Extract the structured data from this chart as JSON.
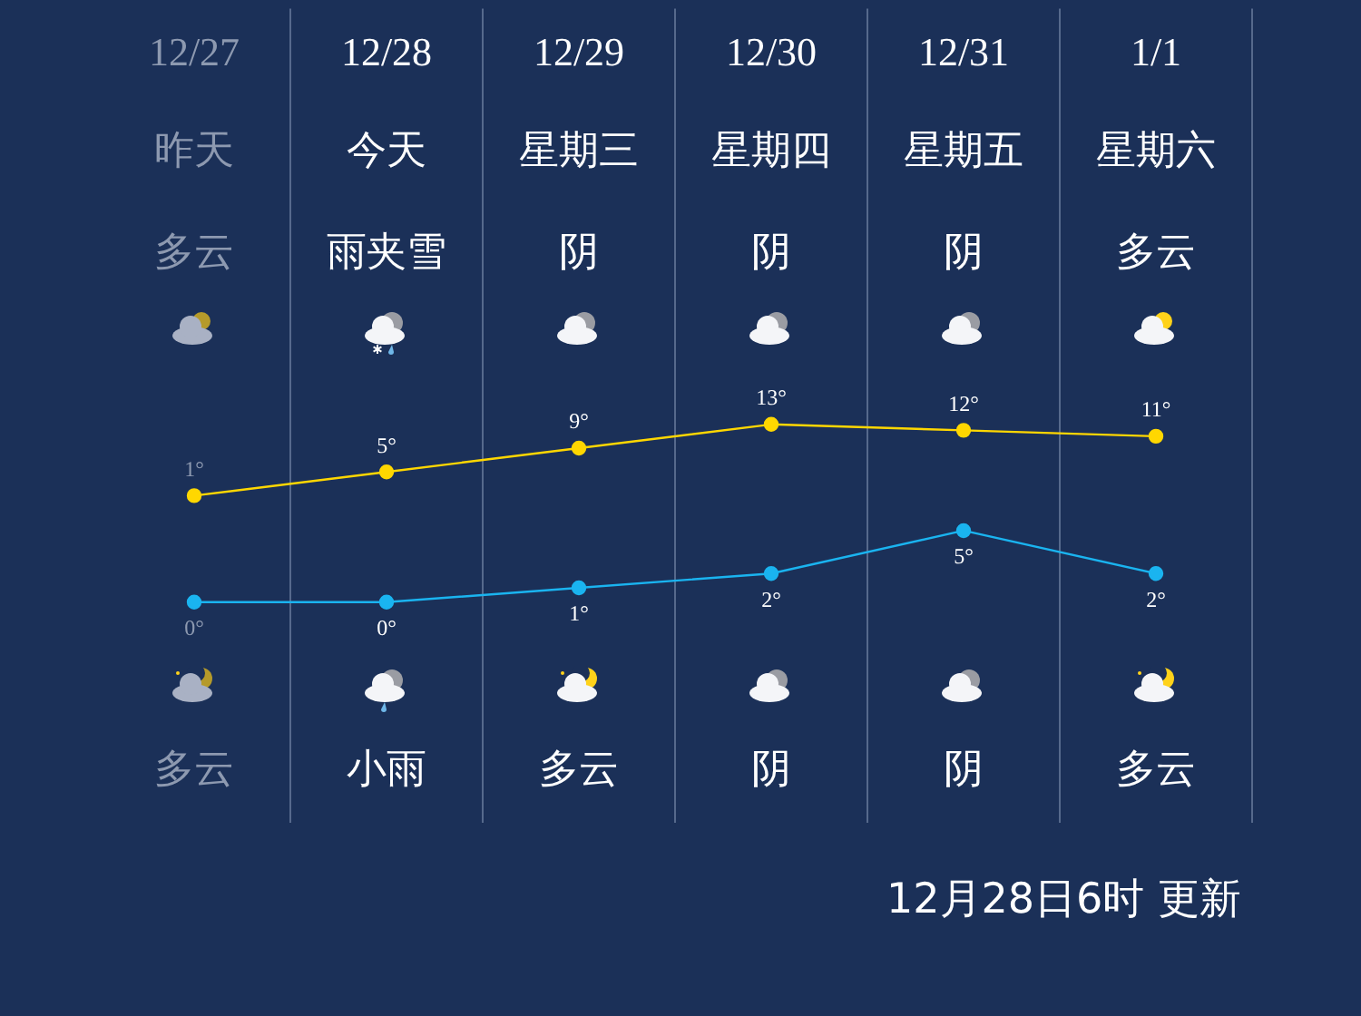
{
  "chart_data": {
    "type": "line",
    "categories": [
      "12/27",
      "12/28",
      "12/29",
      "12/30",
      "12/31",
      "1/1"
    ],
    "annotations": [
      "昨天",
      "今天",
      "星期三",
      "星期四",
      "星期五",
      "星期六",
      "多云",
      "雨夹雪",
      "阴",
      "阴",
      "阴",
      "多云",
      "多云",
      "小雨",
      "多云",
      "阴",
      "阴",
      "多云",
      "12月28日6时 更新"
    ],
    "series": [
      {
        "color": "#ffd700",
        "values": [
          1,
          5,
          9,
          13,
          12,
          11
        ],
        "value_labels": [
          "1°",
          "5°",
          "9°",
          "13°",
          "12°",
          "11°"
        ]
      },
      {
        "color": "#1ab4f0",
        "axis": "y2",
        "values": [
          0,
          0,
          1,
          2,
          5,
          2
        ],
        "value_labels": [
          "0°",
          "0°",
          "1°",
          "2°",
          "5°",
          "2°"
        ]
      }
    ],
    "ylim": [
      -54,
      83
    ],
    "y2lim": [
      -15.4,
      41.5
    ],
    "tick_labels": false,
    "grid": "x",
    "legend": false,
    "marker": "circle",
    "line_style": "solid"
  }
}
